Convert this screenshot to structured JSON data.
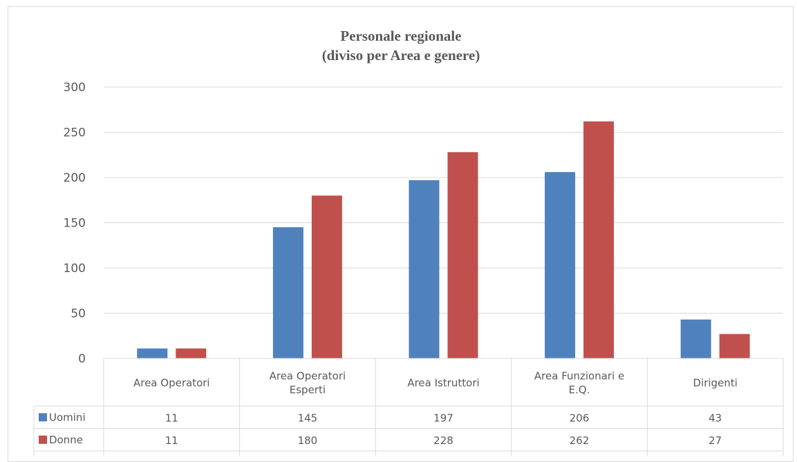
{
  "chart_data": {
    "type": "bar",
    "title": "Personale regionale",
    "subtitle": "(diviso per Area e genere)",
    "categories": [
      [
        "Area Operatori"
      ],
      [
        "Area Operatori",
        "Esperti"
      ],
      [
        "Area Istruttori"
      ],
      [
        "Area Funzionari e",
        "E.Q."
      ],
      [
        "Dirigenti"
      ]
    ],
    "series": [
      {
        "name": "Uomini",
        "color": "#4f81bd",
        "values": [
          11,
          145,
          197,
          206,
          43
        ]
      },
      {
        "name": "Donne",
        "color": "#c0504d",
        "values": [
          11,
          180,
          228,
          262,
          27
        ]
      }
    ],
    "ylim": [
      0,
      300
    ],
    "yticks": [
      0,
      50,
      100,
      150,
      200,
      250,
      300
    ],
    "grid": true,
    "legend": "data-table",
    "data_table": true,
    "colors": {
      "grid": "#d9d9d9",
      "text": "#595959"
    }
  }
}
